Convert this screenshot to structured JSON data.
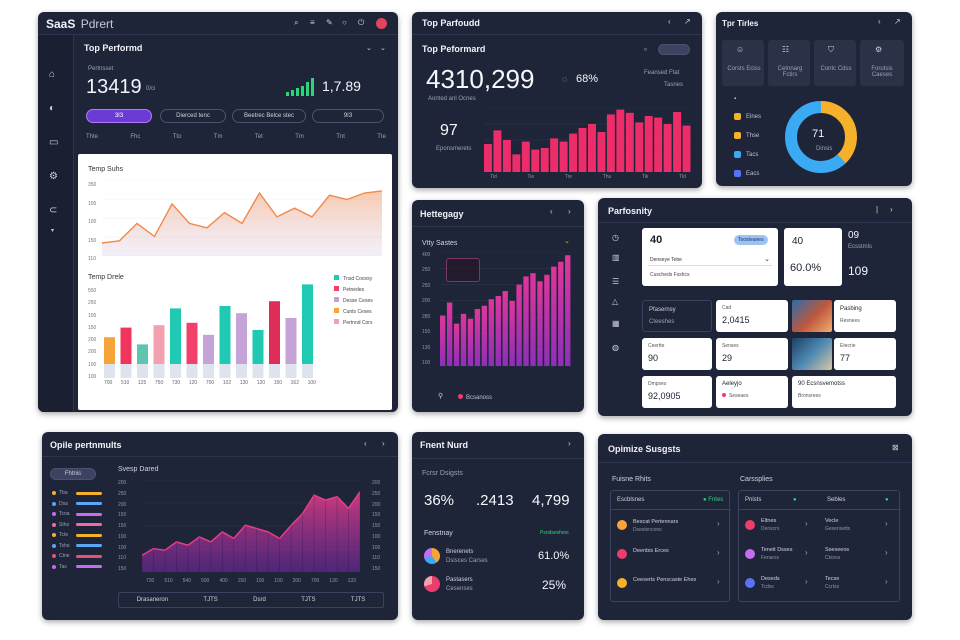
{
  "p1": {
    "brand": "SaaS",
    "brand_sub": "Pdrert",
    "title": "Top Performd",
    "kpi_small": "Pertnsset",
    "kpi_value": "13419",
    "kpi_unit": "0/ci",
    "kpi_right_value": "1,7.89",
    "pill_active": "3I3",
    "pill_2": "Dierced tenc",
    "pill_3": "Beetrec Belce stec",
    "pill_4": "9I3",
    "tabs": [
      "Thte",
      "Fhc",
      "Tto",
      "Tm",
      "Tet",
      "Tm",
      "Tnt",
      "Tte"
    ],
    "card_title": "Temp Suhs",
    "area_ticks": [
      "350",
      "100",
      "100",
      "150",
      "110"
    ],
    "bar_title": "Temp Drele",
    "bar_ticks": [
      "550",
      "250",
      "100",
      "150",
      "200",
      "200",
      "100",
      "100"
    ],
    "legend": [
      "Tnsd Cocesy",
      "Petnedes",
      "Desse Ceses",
      "Cunts Ceses",
      "Pertnnd Cors"
    ],
    "x_labels": [
      "700",
      "510",
      "125",
      "750",
      "730",
      "120",
      "700",
      "102",
      "130",
      "120",
      "150",
      "162",
      "100"
    ],
    "area_chart_data": {
      "type": "area",
      "values": [
        12,
        14,
        30,
        18,
        48,
        30,
        26,
        40,
        30,
        58,
        36,
        44,
        36,
        56,
        52,
        58,
        60
      ]
    },
    "bar_chart_data": {
      "type": "bar",
      "values": [
        34,
        42,
        28,
        44,
        58,
        46,
        36,
        60,
        54,
        40,
        64,
        50,
        78
      ],
      "colors": [
        "#f6a43a",
        "#f0355c",
        "#5cc6b1",
        "#f3a0b0",
        "#1fc9b2",
        "#f2406a",
        "#c6a3d6",
        "#1fc9b2",
        "#c6a3d6",
        "#1fc9b2",
        "#e02d57",
        "#c6a3d6",
        "#1fc9b2"
      ]
    },
    "nav_icons": [
      "home-icon",
      "lock-icon",
      "book-icon",
      "settings-icon",
      "bag-icon"
    ]
  },
  "p2": {
    "title": "Top Parfoudd",
    "subtitle": "Top Peformard",
    "value": "4310,299",
    "value_caption": "Aonted anl Ocnes",
    "percent": "68%",
    "right1": "Feansed Ftat",
    "right2": "Tasnes",
    "stat": "97",
    "stat_caption": "Eponsmerets",
    "chart_data": {
      "type": "bar",
      "values": [
        35,
        52,
        40,
        22,
        38,
        28,
        30,
        42,
        38,
        48,
        55,
        60,
        50,
        72,
        78,
        74,
        62,
        70,
        68,
        60,
        75,
        58
      ],
      "xlabels": [
        "Tid",
        "Tie",
        "Tre",
        "Thu",
        "Tik",
        "Tld"
      ]
    }
  },
  "p3": {
    "title": "Tpr Tirles",
    "tiles": [
      "Corsts Eciss",
      "Cetnnarg Fctirs",
      "Contc Cdss",
      "Forutsis Caeses"
    ],
    "legend": [
      "Elnes",
      "Thse",
      "Tacs",
      "Eacs"
    ],
    "donut_value": "71",
    "donut_caption": "Dinsis",
    "donut_data": {
      "type": "pie",
      "values": [
        38,
        62
      ],
      "colors": [
        "#f6b12a",
        "#3aaaf5"
      ]
    }
  },
  "p4": {
    "title": "Hettegagy",
    "sub": "Vtty Sastes",
    "ticks": [
      "400",
      "250",
      "250",
      "200",
      "280",
      "150",
      "130",
      "100"
    ],
    "footer": "Bcsanoss",
    "chart_data": {
      "type": "bar",
      "values": [
        62,
        78,
        52,
        64,
        58,
        70,
        74,
        82,
        86,
        92,
        80,
        100,
        110,
        114,
        104,
        112,
        122,
        128,
        136
      ]
    }
  },
  "p5": {
    "title": "Parfosnity",
    "c1_value": "40",
    "c1_tag": "Toosteanes",
    "c1_sub": "Denseye Tebe",
    "c1_sub2": "Cuscheds Fsshcs",
    "c2_value": "40",
    "c2_pct": "60.0%",
    "c3_value": "09",
    "c3_value2": "109",
    "c3_sub": "Ecsstmls",
    "m1_label": "Pfasernsy",
    "m1_sub": "Cteeshes",
    "m2_label": "Cad",
    "m2_value": "2,0415",
    "m3_label": "Pasbing",
    "m3_sub": "Resnees",
    "r2a_label": "Ceertte",
    "r2a_value": "90",
    "r2b_label": "Senses",
    "r2b_value": "29",
    "r2c_label": "Etecrie",
    "r2c_value": "77",
    "r3a_label": "Dmpses",
    "r3a_value": "92,0905",
    "r3b_label": "Aeleyjo",
    "r3b_sub": "Seseaes",
    "r3c_label": "90 Ecsnsvemotss",
    "r3c_sub": "Bronsrees"
  },
  "p6": {
    "title": "Opile pertnmults",
    "header_pill": "Fhtnis",
    "chart_title": "Svesp Dared",
    "ticks": [
      "200",
      "250",
      "200",
      "150",
      "150",
      "100",
      "100",
      "110",
      "150"
    ],
    "x_labels": [
      "730",
      "510",
      "540",
      "500",
      "400",
      "150",
      "100",
      "100",
      "200",
      "700",
      "130",
      "133"
    ],
    "footer": [
      "Drasaneron",
      "TJTS",
      "Dsrd",
      "TJTS",
      "TJTS"
    ],
    "chart_data": {
      "type": "area",
      "values": [
        20,
        28,
        26,
        36,
        32,
        42,
        36,
        48,
        40,
        56,
        52,
        48,
        40,
        56,
        70,
        92,
        86,
        90,
        76,
        96
      ]
    },
    "rows": [
      {
        "color": "#f6b12a",
        "label": "Tba"
      },
      {
        "color": "#5aa6f7",
        "label": "Dsa"
      },
      {
        "color": "#c56df0",
        "label": "Tcna"
      },
      {
        "color": "#f06aa9",
        "label": "Stho"
      },
      {
        "color": "#f6b12a",
        "label": "Tcte"
      },
      {
        "color": "#5aa6f7",
        "label": "Tsho"
      },
      {
        "color": "#ec4d7a",
        "label": "Ctne"
      },
      {
        "color": "#c56df0",
        "label": "Tas"
      }
    ]
  },
  "p7": {
    "title": "Fnent Nurd",
    "sub": "Fcrsr Dsigsts",
    "v1": "36%",
    "v2": ".2413",
    "v3": "4,799",
    "section": "Fenstnay",
    "section_tag": "Psndsesfons",
    "row1_label": "Bnerenets",
    "row1_sub": "Dsisces Carses",
    "row1_value": "61.0%",
    "row2_label": "Pastasers",
    "row2_sub": "Cesenses",
    "row2_value": "25%"
  },
  "p8": {
    "title": "Opimize Susgsts",
    "left_head": "Fuisne Rhits",
    "right_head": "Carssplies",
    "left_cols": [
      "Escblsnes",
      "Fntes"
    ],
    "right_cols": [
      "Pnists",
      "Sebles"
    ],
    "left_rows": [
      {
        "color": "#f6a43a",
        "label": "Bescat Pertennars",
        "sub": "Dsesiencons"
      },
      {
        "color": "#ec3d6d",
        "label": "Deenbis Erces",
        "sub": ""
      },
      {
        "color": "#f6b12a",
        "label": "Ceeserts Penscaste Ehes",
        "sub": ""
      }
    ],
    "right_rows": [
      {
        "color": "#ec3d6d",
        "label": "Eltnes",
        "sub": "Denscrs",
        "label2": "Vecle",
        "sub2": "Gesensetts"
      },
      {
        "color": "#c56df0",
        "label": "Teneit Dsses",
        "sub": "Fenarss",
        "label2": "Sseseeos",
        "sub2": "Ctsnss"
      },
      {
        "color": "#5a72f7",
        "label": "Deseds",
        "sub": "Tcdss",
        "label2": "Tecse",
        "sub2": "Ccrtss"
      }
    ]
  }
}
